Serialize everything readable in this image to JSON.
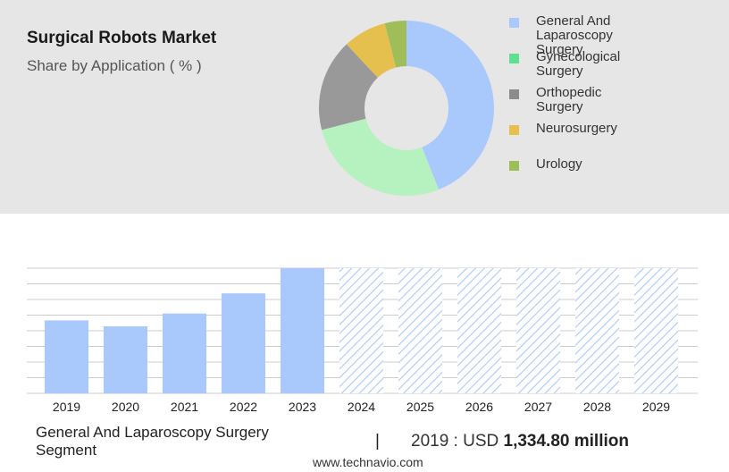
{
  "header": {
    "title": "Surgical Robots Market",
    "subtitle": "Share by Application ( % )"
  },
  "colors": {
    "panel_bg": "#e6e6e6",
    "bar_fill": "#a9c8fc",
    "forecast_hatch": "#a9c8fc",
    "grid": "#cccccc"
  },
  "chart_data": [
    {
      "type": "pie",
      "variant": "donut",
      "title": "Share by Application ( % )",
      "legend_position": "right",
      "categories": [
        "General And Laparoscopy Surgery",
        "Gynecological Surgery",
        "Orthopedic Surgery",
        "Neurosurgery",
        "Urology"
      ],
      "values": [
        44,
        27,
        17,
        8,
        4
      ],
      "legend_colors": [
        "#a9c8fc",
        "#5ee08e",
        "#8c8c8c",
        "#e6c04f",
        "#9fbe5a"
      ],
      "slice_colors": [
        "#a9c8fc",
        "#b6f2bf",
        "#999999",
        "#e6c04f",
        "#9fbe5a"
      ]
    },
    {
      "type": "bar",
      "categories": [
        "2019",
        "2020",
        "2021",
        "2022",
        "2023",
        "2024",
        "2025",
        "2026",
        "2027",
        "2028",
        "2029"
      ],
      "values": [
        1334.8,
        1226.0,
        1460.0,
        1829.0,
        2290.0,
        null,
        null,
        null,
        null,
        null,
        null
      ],
      "forecast": [
        false,
        false,
        false,
        false,
        false,
        true,
        true,
        true,
        true,
        true,
        true
      ],
      "grid": true,
      "ylim": [
        0,
        2290
      ]
    }
  ],
  "footer": {
    "segment": "General And Laparoscopy Surgery Segment",
    "divider": "|",
    "stat_label": "2019 : USD",
    "stat_value": "1,334.80 million",
    "source": "www.technavio.com"
  }
}
